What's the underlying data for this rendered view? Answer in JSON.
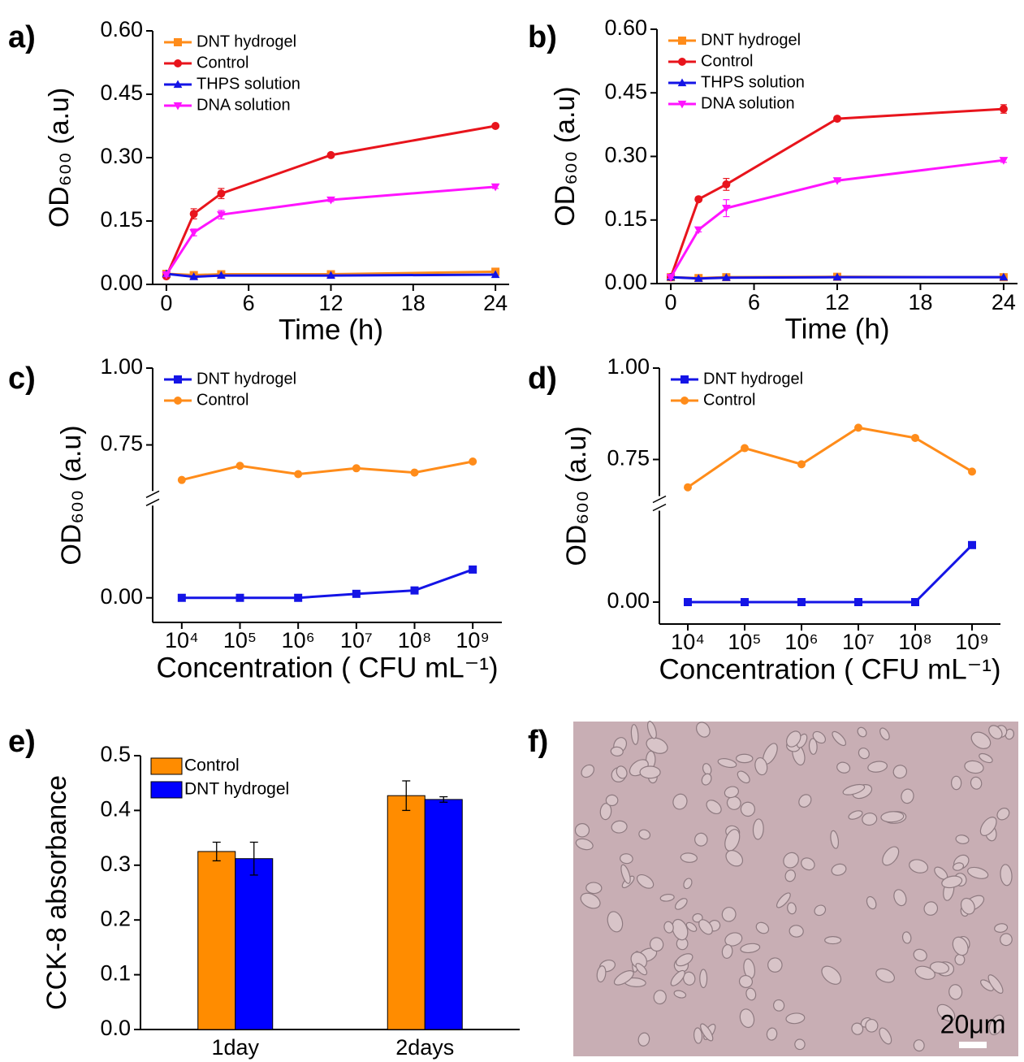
{
  "chart_data": [
    {
      "type": "line",
      "panel_label": "a)",
      "xlabel": "Time (h)",
      "ylabel": "OD₆₀₀ (a.u)",
      "legend": "upper left",
      "x": [
        0,
        2,
        4,
        12,
        24
      ],
      "xlim": [
        -1,
        25
      ],
      "xticks": [
        0,
        6,
        12,
        18,
        24
      ],
      "ylim": [
        0,
        0.6
      ],
      "yticks": [
        {
          "value": 0,
          "label": "0.00"
        },
        {
          "value": 0.15,
          "label": "0.15"
        },
        {
          "value": 0.3,
          "label": "0.30"
        },
        {
          "value": 0.45,
          "label": "0.45"
        },
        {
          "value": 0.6,
          "label": "0.60"
        }
      ],
      "series": [
        {
          "name": "DNT hydrogel",
          "color": "#ff8c1a",
          "marker": "square",
          "values": [
            0.025,
            0.022,
            0.024,
            0.024,
            0.03
          ]
        },
        {
          "name": "Control",
          "color": "#e8141c",
          "marker": "circle",
          "values": [
            0.019,
            0.167,
            0.215,
            0.306,
            0.375
          ],
          "errors": [
            0.004,
            0.012,
            0.012,
            0.004,
            0.004
          ]
        },
        {
          "name": "THPS solution",
          "color": "#1414e6",
          "marker": "triangle-up",
          "values": [
            0.025,
            0.018,
            0.021,
            0.021,
            0.023
          ]
        },
        {
          "name": "DNA solution",
          "color": "#ff14ff",
          "marker": "triangle-down",
          "values": [
            0.023,
            0.123,
            0.165,
            0.2,
            0.231
          ],
          "errors": [
            0.004,
            0.008,
            0.01,
            0.004,
            0.004
          ]
        }
      ]
    },
    {
      "type": "line",
      "panel_label": "b)",
      "xlabel": "Time (h)",
      "ylabel": "OD₆₀₀ (a.u)",
      "legend": "upper left",
      "x": [
        0,
        2,
        4,
        12,
        24
      ],
      "xlim": [
        -1,
        25
      ],
      "xticks": [
        0,
        6,
        12,
        18,
        24
      ],
      "ylim": [
        0,
        0.6
      ],
      "yticks": [
        {
          "value": 0,
          "label": "0.00"
        },
        {
          "value": 0.15,
          "label": "0.15"
        },
        {
          "value": 0.3,
          "label": "0.30"
        },
        {
          "value": 0.45,
          "label": "0.45"
        },
        {
          "value": 0.6,
          "label": "0.60"
        }
      ],
      "series": [
        {
          "name": "DNT hydrogel",
          "color": "#ff8c1a",
          "marker": "square",
          "values": [
            0.015,
            0.013,
            0.015,
            0.016,
            0.015
          ]
        },
        {
          "name": "Control",
          "color": "#e8141c",
          "marker": "circle",
          "values": [
            0.015,
            0.199,
            0.234,
            0.389,
            0.412
          ],
          "errors": [
            0.003,
            0.005,
            0.014,
            0.003,
            0.01
          ]
        },
        {
          "name": "THPS solution",
          "color": "#1414e6",
          "marker": "triangle-up",
          "values": [
            0.015,
            0.012,
            0.014,
            0.015,
            0.015
          ]
        },
        {
          "name": "DNA solution",
          "color": "#ff14ff",
          "marker": "triangle-down",
          "values": [
            0.015,
            0.127,
            0.178,
            0.243,
            0.291
          ],
          "errors": [
            0.003,
            0.005,
            0.02,
            0.003,
            0.005
          ]
        }
      ]
    },
    {
      "type": "line",
      "panel_label": "c)",
      "xlabel": "Concentration ( CFU mL⁻¹)",
      "ylabel": "OD₆₀₀ (a.u)",
      "legend": "upper left",
      "categories": [
        "10⁴",
        "10⁵",
        "10⁶",
        "10⁷",
        "10⁸",
        "10⁹"
      ],
      "ylim": [
        -0.08,
        1.0
      ],
      "ybreak": [
        0.3,
        0.6
      ],
      "yticks": [
        {
          "value": 0,
          "label": "0.00"
        },
        {
          "value": 0.75,
          "label": "0.75"
        },
        {
          "value": 1.0,
          "label": "1.00"
        }
      ],
      "series": [
        {
          "name": "DNT hydrogel",
          "color": "#1414e6",
          "marker": "square",
          "values": [
            0,
            0,
            0,
            0.013,
            0.024,
            0.092
          ]
        },
        {
          "name": "Control",
          "color": "#ff8c1a",
          "marker": "circle",
          "values": [
            0.636,
            0.682,
            0.655,
            0.674,
            0.66,
            0.696
          ]
        }
      ]
    },
    {
      "type": "line",
      "panel_label": "d)",
      "xlabel": "Concentration ( CFU mL⁻¹)",
      "ylabel": "OD₆₀₀ (a.u)",
      "legend": "upper left",
      "categories": [
        "10⁴",
        "10⁵",
        "10⁶",
        "10⁷",
        "10⁸",
        "10⁹"
      ],
      "ylim": [
        -0.06,
        1.0
      ],
      "ybreak": [
        0.25,
        0.65
      ],
      "yticks": [
        {
          "value": 0,
          "label": "0.00"
        },
        {
          "value": 0.75,
          "label": "0.75"
        },
        {
          "value": 1.0,
          "label": "1.00"
        }
      ],
      "series": [
        {
          "name": "DNT hydrogel",
          "color": "#1414e6",
          "marker": "square",
          "values": [
            0,
            0,
            0,
            0,
            0,
            0.156
          ]
        },
        {
          "name": "Control",
          "color": "#ff8c1a",
          "marker": "circle",
          "values": [
            0.674,
            0.781,
            0.737,
            0.837,
            0.809,
            0.717
          ]
        }
      ]
    },
    {
      "type": "bar",
      "panel_label": "e)",
      "ylabel": "CCK-8 absorbance",
      "legend": "upper left",
      "categories": [
        "1day",
        "2days"
      ],
      "ylim": [
        0,
        0.5
      ],
      "yticks": [
        {
          "value": 0,
          "label": "0.0"
        },
        {
          "value": 0.1,
          "label": "0.1"
        },
        {
          "value": 0.2,
          "label": "0.2"
        },
        {
          "value": 0.3,
          "label": "0.3"
        },
        {
          "value": 0.4,
          "label": "0.4"
        },
        {
          "value": 0.5,
          "label": "0.5"
        }
      ],
      "series": [
        {
          "name": "Control",
          "color": "#ff8c00",
          "values": [
            0.325,
            0.427
          ],
          "errors": [
            0.017,
            0.027
          ]
        },
        {
          "name": "DNT hydrogel",
          "color": "#0000ff",
          "values": [
            0.312,
            0.42
          ],
          "errors": [
            0.03,
            0.005
          ]
        }
      ]
    },
    {
      "type": "image",
      "panel_label": "f)",
      "scale_bar_label": "20μm"
    }
  ]
}
